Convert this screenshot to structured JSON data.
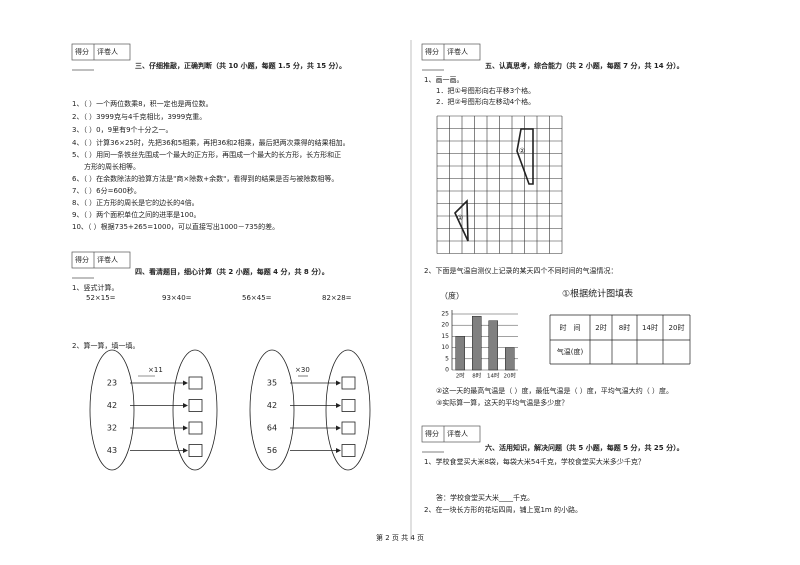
{
  "left": {
    "score_box_1": {
      "score": "得分",
      "grader": "评卷人"
    },
    "section3": {
      "title": "三、仔细推敲，正确判断（共 10 小题，每题 1.5 分，共 15 分）。",
      "items": [
        "1、（    ）一个两位数乘8，积一定也是两位数。",
        "2、（    ）3999克与4千克相比，3999克重。",
        "3、（    ）0，9里有9个十分之一。",
        "4、（    ）计算36×25时，先把36和5相乘，再把36和2相乘，最后把两次乘得的结果相加。",
        "5、（    ）用同一条铁丝先围成一个最大的正方形，再围成一个最大的长方形，长方形和正",
        "方形的周长相等。",
        "6、（    ）在余数除法的验算方法是\"商×除数+余数\"，看得到的结果是否与被除数相等。",
        "7、（    ）6分=600秒。",
        "8、（    ）正方形的周长是它的边长的4倍。",
        "9、（    ）两个面积单位之间的进率是100。",
        "10、（    ）根据735+265=1000，可以直接写出1000－735的差。"
      ]
    },
    "score_box_2": {
      "score": "得分",
      "grader": "评卷人"
    },
    "section4": {
      "title": "四、看清题目，细心计算（共 2 小题，每题 4 分，共 8 分）。",
      "q1": "1、竖式计算。",
      "q1_items": [
        "52×15=",
        "93×40=",
        "56×45=",
        "82×28="
      ],
      "q2": "2、算一算，填一填。",
      "group1": {
        "op": "×11",
        "numbers": [
          "23",
          "42",
          "32",
          "43"
        ]
      },
      "group2": {
        "op": "×30",
        "numbers": [
          "35",
          "42",
          "64",
          "56"
        ]
      }
    }
  },
  "right": {
    "score_box_1": {
      "score": "得分",
      "grader": "评卷人"
    },
    "section5": {
      "title": "五、认真思考，综合能力（共 2 小题，每题 7 分，共 14 分）。",
      "q1": "1、画一画。",
      "q1_steps": [
        "1．把①号图形向右平移3个格。",
        "2．把②号图形向左移动4个格。"
      ],
      "shape_labels": [
        "①",
        "②"
      ],
      "q2": "2、下面是气温自测仪上记录的某天四个不同时间的气温情况：",
      "table_title": "①根据统计图填表",
      "table_header": [
        "时　间",
        "2时",
        "8时",
        "14时",
        "20时"
      ],
      "table_row": "气温(度)",
      "q2_part2": "②这一天的最高气温是（        ）度，最低气温是（        ）度，平均气温大约（        ）度。",
      "q2_part3": "③实际算一算，这天的平均气温是多少度？"
    },
    "score_box_2": {
      "score": "得分",
      "grader": "评卷人"
    },
    "section6": {
      "title": "六、活用知识，解决问题（共 5 小题，每题 5 分，共 25 分）。",
      "q1": "1、学校食堂买大米8袋，每袋大米54千克，学校食堂买大米多少千克？",
      "q1_answer": "答：学校食堂买大米____千克。",
      "q2": "2、在一块长方形的花坛四周，铺上宽1m 的小路。"
    }
  },
  "chart_data": {
    "type": "bar",
    "y_label": "（度）",
    "categories": [
      "2时",
      "8时",
      "14时",
      "20时"
    ],
    "values": [
      15,
      24,
      22,
      10
    ],
    "color": "#808080",
    "ylim": [
      0,
      25
    ],
    "yticks": [
      0,
      5,
      10,
      15,
      20,
      25
    ],
    "grid": true
  },
  "footer": "第 2 页 共 4 页"
}
